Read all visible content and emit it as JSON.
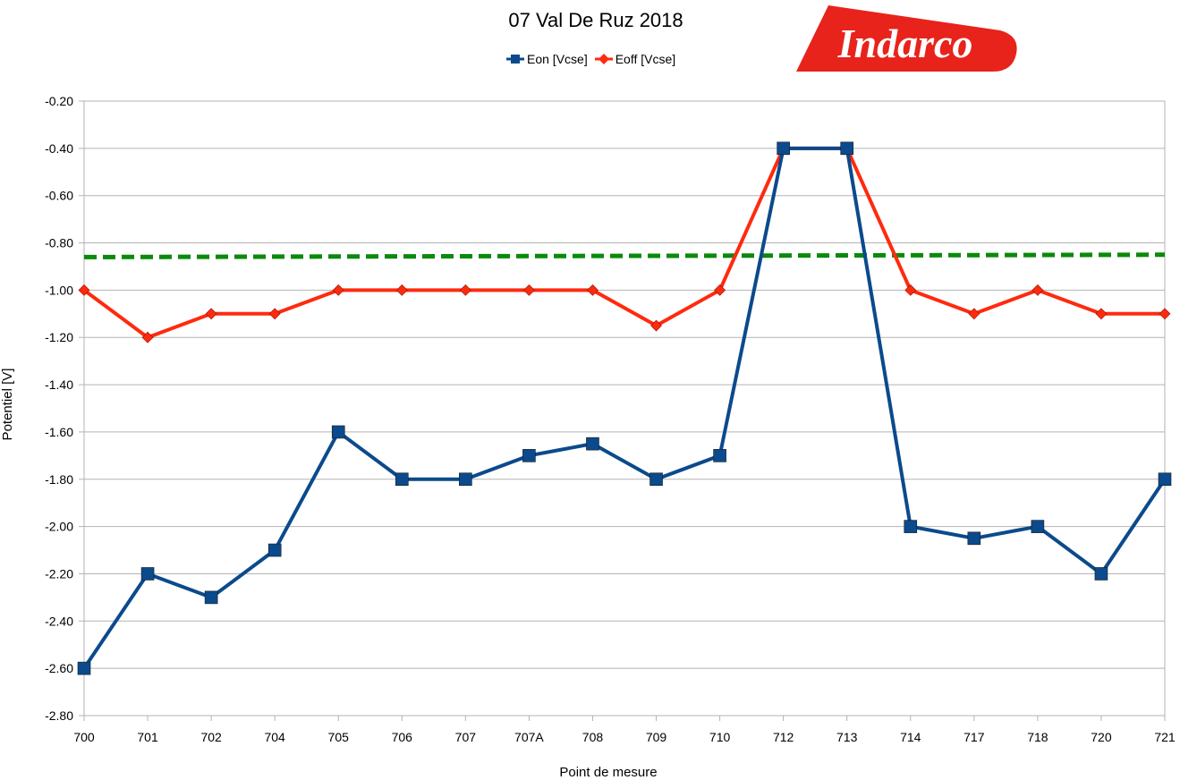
{
  "chart_data": {
    "type": "line",
    "title": "07 Val De Ruz 2018",
    "xlabel": "Point de mesure",
    "ylabel": "Potentiel [V]",
    "ylim": [
      -2.8,
      -0.2
    ],
    "yticks": [
      "-0.20",
      "-0.40",
      "-0.60",
      "-0.80",
      "-1.00",
      "-1.20",
      "-1.40",
      "-1.60",
      "-1.80",
      "-2.00",
      "-2.20",
      "-2.40",
      "-2.60",
      "-2.80"
    ],
    "categories": [
      "700",
      "701",
      "702",
      "704",
      "705",
      "706",
      "707",
      "707A",
      "708",
      "709",
      "710",
      "712",
      "713",
      "714",
      "717",
      "718",
      "720",
      "721"
    ],
    "series": [
      {
        "name": "Eon [Vcse]",
        "color": "#0b4a8c",
        "marker": "square",
        "values": [
          -2.6,
          -2.2,
          -2.3,
          -2.1,
          -1.6,
          -1.8,
          -1.8,
          -1.7,
          -1.65,
          -1.8,
          -1.7,
          -0.4,
          -0.4,
          -2.0,
          -2.05,
          -2.0,
          -2.2,
          -1.8
        ]
      },
      {
        "name": "Eoff [Vcse]",
        "color": "#ff2a0e",
        "marker": "diamond",
        "values": [
          -1.0,
          -1.2,
          -1.1,
          -1.1,
          -1.0,
          -1.0,
          -1.0,
          -1.0,
          -1.0,
          -1.15,
          -1.0,
          -0.4,
          -0.4,
          -1.0,
          -1.1,
          -1.0,
          -1.1,
          -1.1
        ]
      }
    ],
    "reference_line": {
      "value_start": -0.86,
      "value_end": -0.85,
      "color": "#0a8a0a",
      "style": "dashed"
    },
    "grid": true,
    "legend_position": "top"
  },
  "logo": {
    "text": "Indarco",
    "color": "#e8231b"
  }
}
